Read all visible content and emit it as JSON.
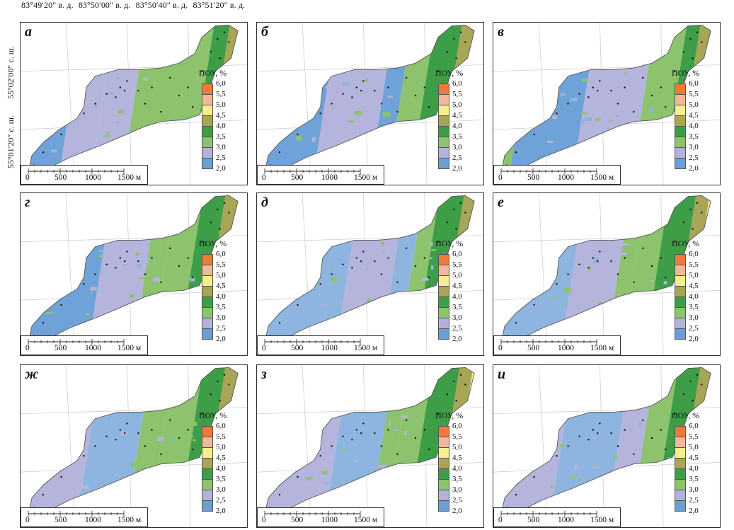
{
  "header": {
    "lon_labels": [
      "83°49′20″ в. д.",
      "83°50′00″ в. д.",
      "83°50′40″ в. д.",
      "83°51′20″ в. д."
    ],
    "lat_labels": [
      "55°02′00″ с. ш.",
      "55°01′20″ с. ш."
    ]
  },
  "legend": {
    "title": "ПОУ, %",
    "ticks": [
      "6,0",
      "5,5",
      "5,0",
      "4,5",
      "4,0",
      "3,5",
      "3,0",
      "2,5",
      "2,0"
    ],
    "colors": [
      "#ee7a3a",
      "#f3b79a",
      "#f7ef8f",
      "#a8a556",
      "#3e9e48",
      "#8cc36c",
      "#b3b2dc",
      "#6b9fd4"
    ]
  },
  "scalebar": {
    "labels": [
      "0",
      "500",
      "1000",
      "1500 м"
    ]
  },
  "colors": {
    "blue": "#6fa2d8",
    "lightblue": "#8eb5e0",
    "lavender": "#b5b4dc",
    "lightgreen": "#8cc36c",
    "green": "#3e9e48",
    "olive": "#a8a556",
    "yellow": "#f7ef8f",
    "peach": "#f3b79a",
    "orange": "#ee7a3a"
  },
  "panels": [
    {
      "label": "а",
      "zones": [
        0.22,
        0.36,
        0.5,
        0.8,
        0.87,
        0.92,
        0.97
      ],
      "bands": [
        "blue",
        "lavender",
        "lavender",
        "lightgreen",
        "green",
        "olive",
        "yellow",
        "peach"
      ]
    },
    {
      "label": "б",
      "zones": [
        0.3,
        0.55,
        0.63,
        0.73,
        0.85,
        0.91,
        0.96
      ],
      "bands": [
        "blue",
        "lavender",
        "blue",
        "lightgreen",
        "green",
        "olive",
        "yellow",
        "orange"
      ]
    },
    {
      "label": "в",
      "zones": [
        0.12,
        0.4,
        0.66,
        0.8,
        0.86,
        0.91,
        0.96
      ],
      "bands": [
        "lightgreen",
        "blue",
        "lavender",
        "lightgreen",
        "green",
        "olive",
        "yellow",
        "peach"
      ]
    },
    {
      "label": "г",
      "zones": [
        0.35,
        0.55,
        0.63,
        0.75,
        0.85,
        0.91,
        0.96
      ],
      "bands": [
        "blue",
        "lavender",
        "lightgreen",
        "lightgreen",
        "green",
        "olive",
        "yellow",
        "peach"
      ]
    },
    {
      "label": "д",
      "zones": [
        0.4,
        0.6,
        0.68,
        0.75,
        0.86,
        0.91,
        0.96
      ],
      "bands": [
        "lightblue",
        "lavender",
        "lightblue",
        "lightgreen",
        "green",
        "olive",
        "yellow",
        "peach"
      ]
    },
    {
      "label": "е",
      "zones": [
        0.35,
        0.55,
        0.62,
        0.72,
        0.84,
        0.9,
        0.95
      ],
      "bands": [
        "lightblue",
        "lavender",
        "lightgreen",
        "lightgreen",
        "green",
        "olive",
        "yellow",
        "orange"
      ]
    },
    {
      "label": "ж",
      "zones": [
        0.3,
        0.52,
        0.62,
        0.75,
        0.85,
        0.91,
        0.96
      ],
      "bands": [
        "lavender",
        "lightblue",
        "lightgreen",
        "lightgreen",
        "green",
        "olive",
        "yellow",
        "peach"
      ]
    },
    {
      "label": "з",
      "zones": [
        0.35,
        0.55,
        0.62,
        0.72,
        0.84,
        0.9,
        0.95
      ],
      "bands": [
        "lavender",
        "lightblue",
        "lightgreen",
        "lightgreen",
        "green",
        "olive",
        "yellow",
        "orange"
      ]
    },
    {
      "label": "и",
      "zones": [
        0.3,
        0.55,
        0.66,
        0.76,
        0.86,
        0.91,
        0.96
      ],
      "bands": [
        "lavender",
        "lightblue",
        "lavender",
        "lightgreen",
        "green",
        "olive",
        "yellow",
        "peach"
      ]
    }
  ]
}
